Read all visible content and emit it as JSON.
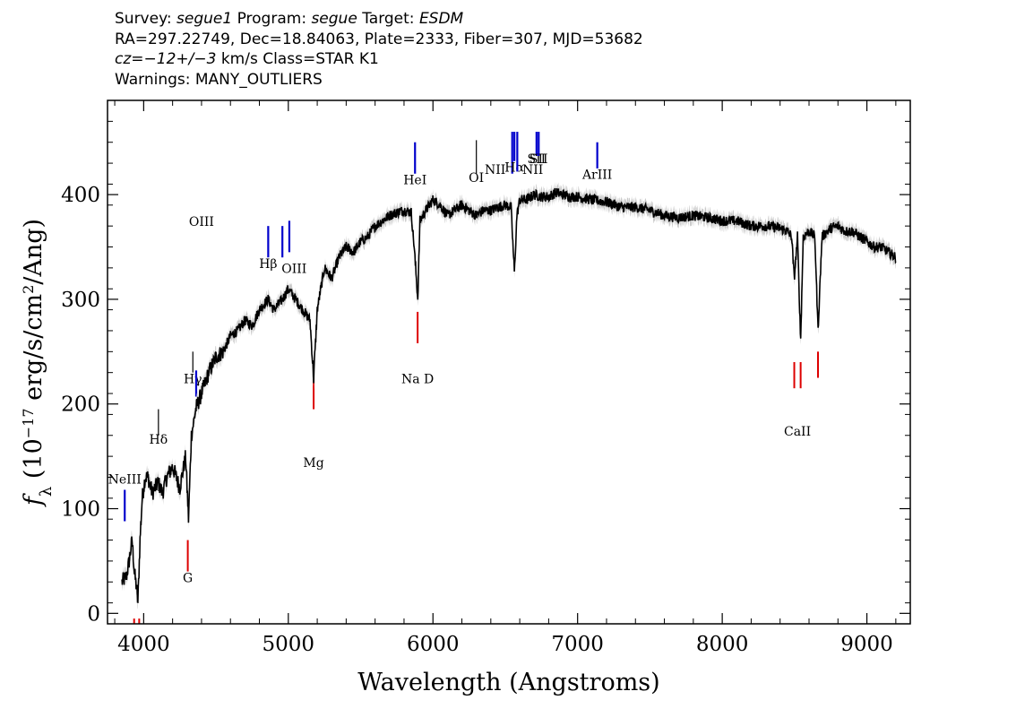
{
  "header": {
    "line1": {
      "survey_label": "Survey: ",
      "survey": "segue1",
      "program_label": " Program: ",
      "program": "segue",
      "target_label": " Target: ",
      "target": "ESDM"
    },
    "line2": "RA=297.22749, Dec=18.84063, Plate=2333, Fiber=307, MJD=53682",
    "line3": {
      "cz": "cz=−12+/−3",
      "rest": " km/s Class=STAR K1"
    },
    "line4": "Warnings: MANY_OUTLIERS"
  },
  "chart_data": {
    "type": "line",
    "xlabel": "Wavelength (Angstroms)",
    "ylabel": "f_λ (10^-17 erg/s/cm^2/Ang)",
    "xlim": [
      3750,
      9300
    ],
    "ylim": [
      -10,
      490
    ],
    "x_ticks": [
      4000,
      5000,
      6000,
      7000,
      8000,
      9000
    ],
    "y_ticks": [
      0,
      100,
      200,
      300,
      400
    ],
    "x_tick_labels": [
      "4000",
      "5000",
      "6000",
      "7000",
      "8000",
      "9000"
    ],
    "y_tick_labels": [
      "0",
      "100",
      "200",
      "300",
      "400"
    ],
    "series": [
      {
        "color": "#000000",
        "x": [
          3850,
          3880,
          3900,
          3920,
          3935,
          3950,
          3960,
          3975,
          3990,
          4010,
          4030,
          4060,
          4100,
          4130,
          4160,
          4200,
          4250,
          4290,
          4310,
          4330,
          4360,
          4400,
          4450,
          4500,
          4550,
          4600,
          4650,
          4700,
          4750,
          4800,
          4860,
          4900,
          4960,
          5000,
          5050,
          5100,
          5150,
          5175,
          5200,
          5250,
          5300,
          5350,
          5400,
          5450,
          5500,
          5550,
          5600,
          5650,
          5700,
          5750,
          5800,
          5850,
          5870,
          5890,
          5895,
          5910,
          5950,
          6000,
          6050,
          6100,
          6150,
          6200,
          6250,
          6300,
          6350,
          6400,
          6450,
          6500,
          6540,
          6563,
          6580,
          6600,
          6650,
          6700,
          6750,
          6800,
          6850,
          6900,
          6950,
          7000,
          7100,
          7200,
          7300,
          7400,
          7500,
          7600,
          7700,
          7800,
          7900,
          8000,
          8100,
          8200,
          8300,
          8400,
          8450,
          8480,
          8498,
          8520,
          8542,
          8560,
          8600,
          8640,
          8662,
          8690,
          8750,
          8800,
          8850,
          8900,
          8950,
          9000,
          9050,
          9100,
          9150,
          9200
        ],
        "y": [
          30,
          35,
          50,
          70,
          40,
          25,
          10,
          70,
          110,
          130,
          130,
          115,
          125,
          115,
          130,
          140,
          120,
          150,
          90,
          170,
          195,
          210,
          230,
          245,
          250,
          265,
          270,
          280,
          275,
          290,
          300,
          290,
          300,
          310,
          300,
          290,
          280,
          225,
          290,
          330,
          320,
          340,
          350,
          345,
          355,
          360,
          370,
          375,
          380,
          383,
          385,
          383,
          350,
          310,
          300,
          375,
          385,
          395,
          390,
          380,
          385,
          390,
          385,
          380,
          385,
          385,
          388,
          390,
          388,
          325,
          380,
          395,
          395,
          400,
          398,
          398,
          402,
          400,
          398,
          398,
          395,
          393,
          388,
          388,
          385,
          380,
          378,
          380,
          378,
          375,
          375,
          370,
          370,
          368,
          365,
          360,
          320,
          360,
          260,
          360,
          365,
          360,
          270,
          360,
          368,
          370,
          365,
          365,
          360,
          355,
          350,
          350,
          345,
          340
        ]
      }
    ],
    "emission_lines": [
      {
        "label": "NeIII",
        "x": 3869
      },
      {
        "label": "Hδ",
        "x": 4102
      },
      {
        "label": "Hγ",
        "x": 4340
      },
      {
        "label": "OIII",
        "x": 4363
      },
      {
        "label": "Hβ",
        "x": 4861
      },
      {
        "label": "OIII",
        "x": 4959
      },
      {
        "label": "OIII",
        "x": 5007
      },
      {
        "label": "HeI",
        "x": 5876
      },
      {
        "label": "OI",
        "x": 6300
      },
      {
        "label": "NII",
        "x": 6548
      },
      {
        "label": "Hα",
        "x": 6563
      },
      {
        "label": "NII",
        "x": 6583
      },
      {
        "label": "SII",
        "x": 6716
      },
      {
        "label": "SII",
        "x": 6731
      },
      {
        "label": "ArIII",
        "x": 7136
      }
    ],
    "absorption_lines": [
      {
        "label": "",
        "x": 3934
      },
      {
        "label": "",
        "x": 3969
      },
      {
        "label": "G",
        "x": 4305
      },
      {
        "label": "Mg",
        "x": 5175
      },
      {
        "label": "Na D",
        "x": 5894
      },
      {
        "label": "CaII",
        "x": 8498
      },
      {
        "label": "",
        "x": 8542
      },
      {
        "label": "",
        "x": 8662
      }
    ],
    "colors": {
      "spectrum": "#000000",
      "error": "#bbbbbb",
      "emission": "#0000cc",
      "emission_thin": "#000000",
      "absorption": "#dd0000"
    }
  }
}
